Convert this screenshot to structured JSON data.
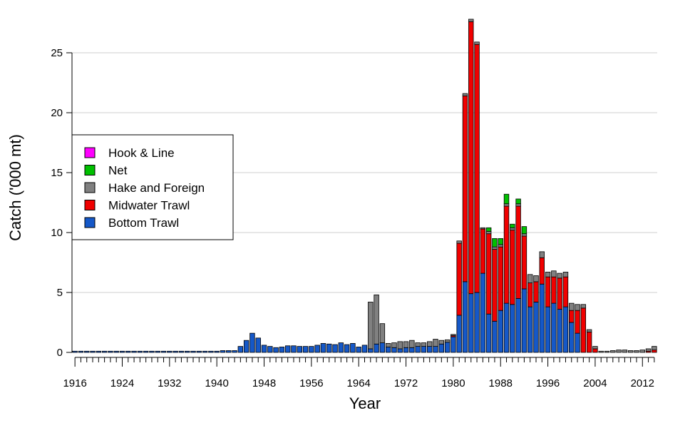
{
  "chart_data": {
    "type": "bar",
    "stacked": true,
    "xlabel": "Year",
    "ylabel": "Catch ('000 mt)",
    "ylim": [
      0,
      28
    ],
    "yticks": [
      0,
      5,
      10,
      15,
      20,
      25
    ],
    "grid": "horizontal",
    "legend_position": "left",
    "year_start": 1916,
    "year_end": 2014,
    "xtick_labels": [
      "1916",
      "1924",
      "1932",
      "1940",
      "1948",
      "1956",
      "1964",
      "1972",
      "1980",
      "1988",
      "1996",
      "2004",
      "2012"
    ],
    "legend_order": [
      "Hook & Line",
      "Net",
      "Hake and Foreign",
      "Midwater Trawl",
      "Bottom Trawl"
    ],
    "series": [
      {
        "name": "Bottom Trawl",
        "color": "#1558c8",
        "values": [
          0.1,
          0.1,
          0.1,
          0.1,
          0.1,
          0.1,
          0.1,
          0.1,
          0.1,
          0.1,
          0.1,
          0.1,
          0.1,
          0.1,
          0.1,
          0.1,
          0.1,
          0.1,
          0.1,
          0.1,
          0.1,
          0.1,
          0.1,
          0.1,
          0.1,
          0.15,
          0.15,
          0.15,
          0.5,
          1.0,
          1.6,
          1.2,
          0.6,
          0.5,
          0.4,
          0.45,
          0.55,
          0.55,
          0.5,
          0.5,
          0.5,
          0.6,
          0.75,
          0.7,
          0.65,
          0.8,
          0.65,
          0.75,
          0.45,
          0.6,
          0.3,
          0.7,
          0.8,
          0.45,
          0.4,
          0.3,
          0.4,
          0.4,
          0.5,
          0.5,
          0.5,
          0.5,
          0.7,
          0.85,
          1.3,
          3.1,
          5.9,
          4.9,
          5.0,
          6.6,
          3.2,
          2.6,
          3.5,
          4.1,
          4.0,
          4.5,
          5.3,
          3.8,
          4.2,
          5.7,
          3.8,
          4.1,
          3.6,
          3.8,
          2.5,
          1.6,
          0.0,
          0.0,
          0.0,
          0.0,
          0.0,
          0.0,
          0.0,
          0.0,
          0.0,
          0.0,
          0.0,
          0.0,
          0.0
        ]
      },
      {
        "name": "Midwater Trawl",
        "color": "#f00000",
        "values": [
          0,
          0,
          0,
          0,
          0,
          0,
          0,
          0,
          0,
          0,
          0,
          0,
          0,
          0,
          0,
          0,
          0,
          0,
          0,
          0,
          0,
          0,
          0,
          0,
          0,
          0,
          0,
          0,
          0,
          0,
          0,
          0,
          0,
          0,
          0,
          0,
          0,
          0,
          0,
          0,
          0,
          0,
          0,
          0,
          0,
          0,
          0,
          0,
          0,
          0,
          0,
          0,
          0,
          0,
          0,
          0,
          0,
          0,
          0,
          0,
          0,
          0,
          0,
          0,
          0.1,
          6.0,
          15.5,
          22.7,
          20.7,
          3.7,
          6.7,
          6.0,
          5.3,
          8.1,
          6.2,
          7.7,
          4.4,
          2.0,
          1.7,
          2.2,
          2.5,
          2.2,
          2.6,
          2.5,
          1.0,
          1.9,
          3.7,
          1.7,
          0.3,
          0,
          0,
          0,
          0,
          0,
          0,
          0,
          0,
          0.1,
          0.2
        ]
      },
      {
        "name": "Hake and Foreign",
        "color": "#808080",
        "values": [
          0,
          0,
          0,
          0,
          0,
          0,
          0,
          0,
          0,
          0,
          0,
          0,
          0,
          0,
          0,
          0,
          0,
          0,
          0,
          0,
          0,
          0,
          0,
          0,
          0,
          0,
          0,
          0,
          0,
          0,
          0,
          0,
          0,
          0,
          0,
          0,
          0,
          0,
          0,
          0,
          0,
          0,
          0,
          0,
          0,
          0,
          0,
          0,
          0,
          0,
          3.9,
          4.1,
          1.6,
          0.3,
          0.4,
          0.6,
          0.5,
          0.6,
          0.3,
          0.3,
          0.4,
          0.6,
          0.3,
          0.2,
          0.1,
          0.2,
          0.2,
          0.2,
          0.2,
          0.1,
          0.2,
          0.2,
          0.2,
          0.2,
          0.2,
          0.2,
          0.2,
          0.7,
          0.5,
          0.5,
          0.4,
          0.5,
          0.4,
          0.4,
          0.6,
          0.5,
          0.3,
          0.2,
          0.2,
          0.1,
          0.1,
          0.15,
          0.2,
          0.2,
          0.15,
          0.15,
          0.2,
          0.2,
          0.3
        ]
      },
      {
        "name": "Net",
        "color": "#00c000",
        "values": [
          0,
          0,
          0,
          0,
          0,
          0,
          0,
          0,
          0,
          0,
          0,
          0,
          0,
          0,
          0,
          0,
          0,
          0,
          0,
          0,
          0,
          0,
          0,
          0,
          0,
          0,
          0,
          0,
          0,
          0,
          0,
          0,
          0,
          0,
          0,
          0,
          0,
          0,
          0,
          0,
          0,
          0,
          0,
          0,
          0,
          0,
          0,
          0,
          0,
          0,
          0,
          0,
          0,
          0,
          0,
          0,
          0,
          0,
          0,
          0,
          0,
          0,
          0,
          0,
          0,
          0,
          0,
          0,
          0,
          0,
          0.3,
          0.7,
          0.5,
          0.8,
          0.3,
          0.4,
          0.6,
          0,
          0,
          0,
          0,
          0,
          0,
          0,
          0,
          0,
          0,
          0,
          0,
          0,
          0,
          0,
          0,
          0,
          0,
          0,
          0,
          0,
          0
        ]
      },
      {
        "name": "Hook & Line",
        "color": "#ff00ff",
        "values": [
          0,
          0,
          0,
          0,
          0,
          0,
          0,
          0,
          0,
          0,
          0,
          0,
          0,
          0,
          0,
          0,
          0,
          0,
          0,
          0,
          0,
          0,
          0,
          0,
          0,
          0,
          0,
          0,
          0,
          0,
          0,
          0,
          0,
          0,
          0,
          0,
          0,
          0,
          0,
          0,
          0,
          0,
          0,
          0,
          0,
          0,
          0,
          0,
          0,
          0,
          0,
          0,
          0,
          0,
          0,
          0,
          0,
          0,
          0,
          0,
          0,
          0,
          0,
          0,
          0,
          0,
          0,
          0,
          0,
          0,
          0,
          0,
          0,
          0,
          0,
          0,
          0,
          0,
          0,
          0,
          0,
          0,
          0,
          0,
          0,
          0,
          0,
          0,
          0,
          0,
          0,
          0,
          0,
          0,
          0,
          0,
          0,
          0,
          0
        ]
      }
    ]
  }
}
